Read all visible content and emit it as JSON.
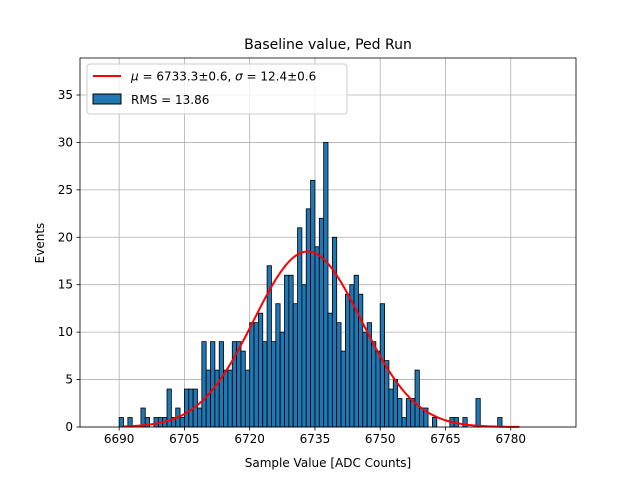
{
  "chart_data": {
    "type": "bar",
    "title": "Baseline value, Ped Run",
    "xlabel": "Sample Value [ADC Counts]",
    "ylabel": "Events",
    "xlim": [
      6681,
      6795
    ],
    "ylim": [
      0,
      38.9
    ],
    "grid": true,
    "legend_position": "top-left",
    "xticks": [
      6690,
      6705,
      6720,
      6735,
      6750,
      6765,
      6780
    ],
    "yticks": [
      0,
      5,
      10,
      15,
      20,
      25,
      30,
      35
    ],
    "bin_width": 1,
    "series": [
      {
        "name": "RMS = 13.86",
        "kind": "histogram",
        "color": "#1f77b4",
        "edgecolor": "#000000",
        "x": [
          6690,
          6691,
          6692,
          6693,
          6694,
          6695,
          6696,
          6697,
          6698,
          6699,
          6700,
          6701,
          6702,
          6703,
          6704,
          6705,
          6706,
          6707,
          6708,
          6709,
          6710,
          6711,
          6712,
          6713,
          6714,
          6715,
          6716,
          6717,
          6718,
          6719,
          6720,
          6721,
          6722,
          6723,
          6724,
          6725,
          6726,
          6727,
          6728,
          6729,
          6730,
          6731,
          6732,
          6733,
          6734,
          6735,
          6736,
          6737,
          6738,
          6739,
          6740,
          6741,
          6742,
          6743,
          6744,
          6745,
          6746,
          6747,
          6748,
          6749,
          6750,
          6751,
          6752,
          6753,
          6754,
          6755,
          6756,
          6757,
          6758,
          6759,
          6760,
          6761,
          6762,
          6763,
          6764,
          6765,
          6766,
          6767,
          6768,
          6769,
          6770,
          6771,
          6772,
          6773,
          6774,
          6775,
          6776,
          6777,
          6778,
          6779,
          6780,
          6781,
          6782
        ],
        "values": [
          1,
          0,
          1,
          0,
          0,
          2,
          1,
          0,
          1,
          1,
          1,
          4,
          1,
          2,
          1,
          4,
          4,
          4,
          2,
          9,
          6,
          9,
          6,
          9,
          6,
          6,
          9,
          9,
          8,
          6,
          11,
          11,
          12,
          9,
          17,
          9,
          13,
          10,
          16,
          16,
          13,
          21,
          15,
          23,
          26,
          19,
          22,
          30,
          12,
          20,
          11,
          8,
          14,
          15,
          16,
          14,
          10,
          11,
          9,
          8,
          13,
          7,
          4,
          5,
          3,
          1,
          3,
          3,
          6,
          2,
          2,
          0,
          1,
          0,
          0,
          0,
          1,
          1,
          0,
          1,
          0,
          0,
          3,
          0,
          0,
          0,
          0,
          1,
          0,
          0,
          0,
          0,
          0
        ]
      },
      {
        "name": "$\\mu = 6733.3 \\pm 0.6$, $\\sigma = 12.4 \\pm 0.6$",
        "kind": "gaussian_fit",
        "color": "#ff0000",
        "mu": 6733.3,
        "sigma": 12.4,
        "amplitude": 18.5,
        "x_range": [
          6691,
          6782
        ]
      }
    ]
  },
  "legend": {
    "fit_mu_symbol": "μ",
    "fit_mu_text": " = 6733.3±0.6, ",
    "fit_sigma_symbol": "σ",
    "fit_sigma_text": " = 12.4±0.6",
    "hist_label": "RMS = 13.86"
  }
}
